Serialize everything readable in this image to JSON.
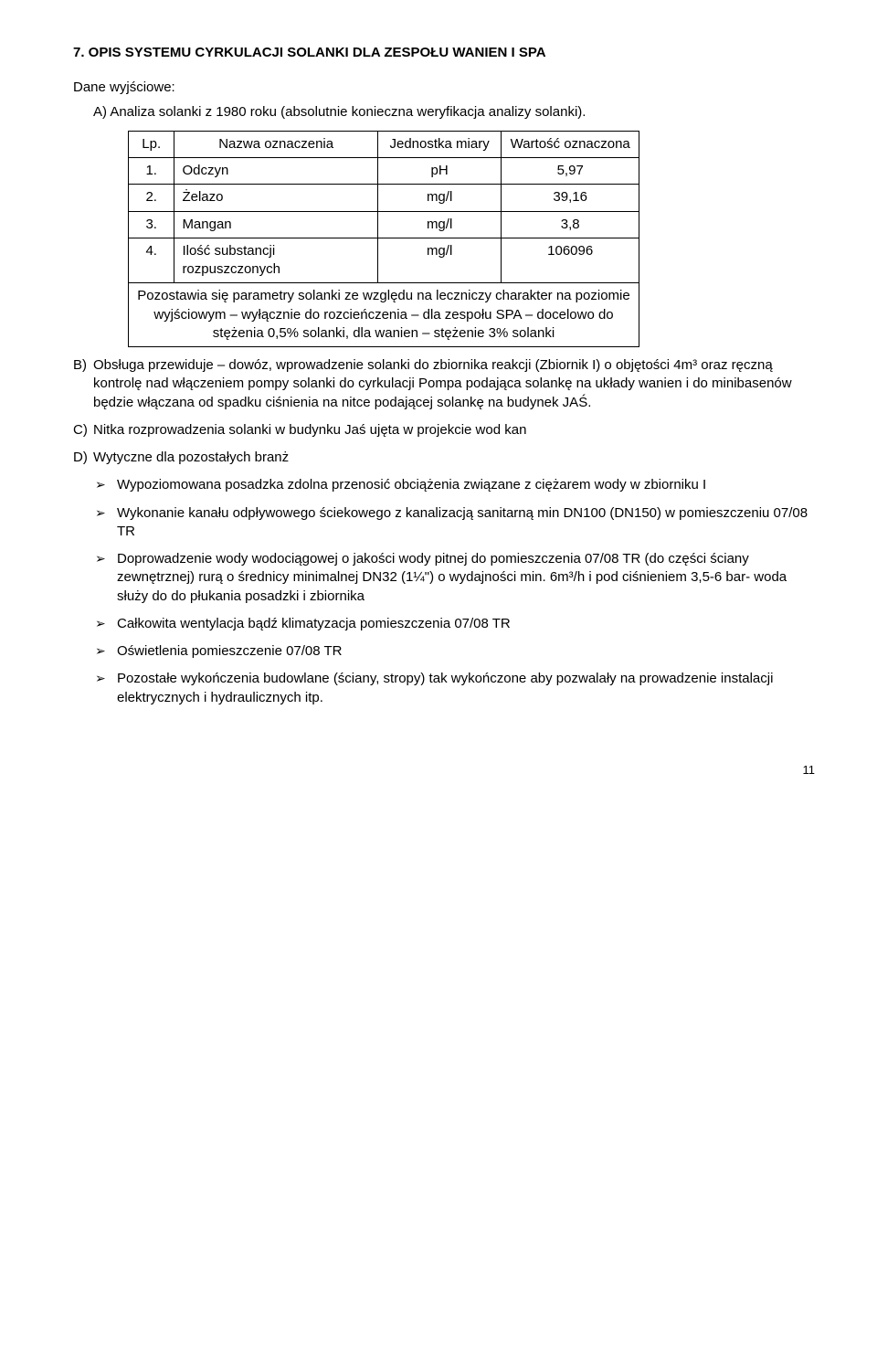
{
  "heading": "7. OPIS SYSTEMU CYRKULACJI SOLANKI DLA ZESPOŁU WANIEN I SPA",
  "intro": "Dane wyjściowe:",
  "itemA": "A) Analiza solanki z 1980 roku (absolutnie konieczna weryfikacja analizy solanki).",
  "table": {
    "headers": [
      "Lp.",
      "Nazwa oznaczenia",
      "Jednostka miary",
      "Wartość oznaczona"
    ],
    "rows": [
      [
        "1.",
        "Odczyn",
        "pH",
        "5,97"
      ],
      [
        "2.",
        "Żelazo",
        "mg/l",
        "39,16"
      ],
      [
        "3.",
        "Mangan",
        "mg/l",
        "3,8"
      ],
      [
        "4.",
        "Ilość substancji rozpuszczonych",
        "mg/l",
        "106096"
      ]
    ],
    "note": "Pozostawia się parametry solanki ze względu na leczniczy charakter na poziomie wyjściowym – wyłącznie do rozcieńczenia – dla zespołu SPA – docelowo do stężenia 0,5% solanki, dla wanien – stężenie 3% solanki"
  },
  "itemB": "Obsługa przewiduje – dowóz, wprowadzenie solanki do zbiornika reakcji (Zbiornik I) o objętości 4m³ oraz ręczną kontrolę nad włączeniem pompy solanki do cyrkulacji Pompa podająca solankę na układy wanien i do minibasenów będzie włączana od spadku ciśnienia na nitce podającej solankę na budynek JAŚ.",
  "itemC": "Nitka rozprowadzenia solanki w budynku Jaś ujęta w projekcie wod kan",
  "itemD": "Wytyczne dla pozostałych  branż",
  "bullets": [
    "Wypoziomowana posadzka zdolna przenosić obciążenia związane z ciężarem wody w zbiorniku I",
    "Wykonanie kanału odpływowego ściekowego z kanalizacją sanitarną min DN100 (DN150) w pomieszczeniu 07/08 TR",
    "Doprowadzenie wody wodociągowej o jakości wody pitnej do pomieszczenia 07/08 TR (do części ściany zewnętrznej) rurą o średnicy minimalnej DN32 (1¼\") o wydajności min. 6m³/h i pod ciśnieniem 3,5-6 bar- woda służy do do płukania posadzki i zbiornika",
    "Całkowita wentylacja bądź klimatyzacja pomieszczenia 07/08 TR",
    "Oświetlenia pomieszczenie 07/08 TR",
    "Pozostałe wykończenia budowlane (ściany, stropy) tak wykończone aby pozwalały na prowadzenie instalacji elektrycznych i hydraulicznych itp."
  ],
  "pageNumber": "11"
}
